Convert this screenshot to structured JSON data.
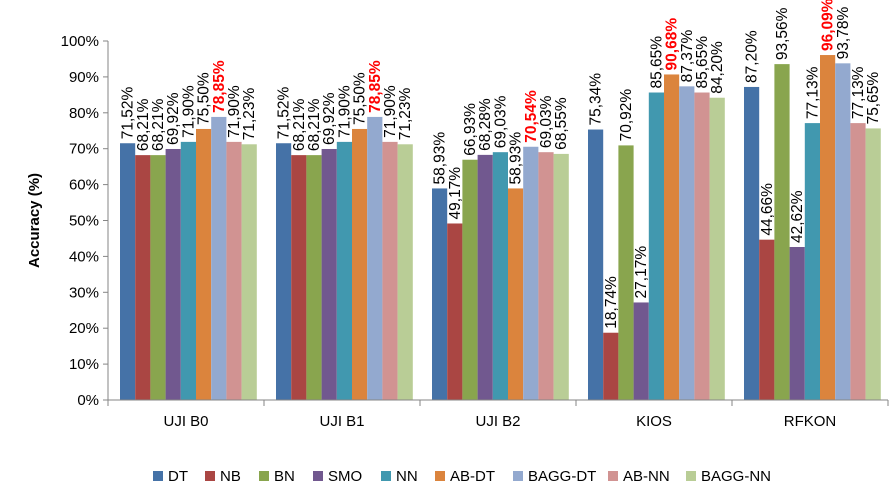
{
  "chart_data": {
    "type": "bar",
    "title": "",
    "xlabel": "",
    "ylabel": "Accuracy (%)",
    "ylim": [
      0,
      100
    ],
    "yticks": [
      "0%",
      "10%",
      "20%",
      "30%",
      "40%",
      "50%",
      "60%",
      "70%",
      "80%",
      "90%",
      "100%"
    ],
    "grid": false,
    "legend_position": "bottom",
    "categories": [
      "UJI B0",
      "UJI B1",
      "UJI B2",
      "KIOS",
      "RFKON"
    ],
    "series": [
      {
        "name": "DT",
        "color": "#4572a7",
        "values": [
          71.52,
          71.52,
          58.93,
          75.34,
          87.2
        ],
        "labels": [
          "71,52%",
          "71,52%",
          "58,93%",
          "75,34%",
          "87,20%"
        ]
      },
      {
        "name": "NB",
        "color": "#aa4643",
        "values": [
          68.21,
          68.21,
          49.17,
          18.74,
          44.66
        ],
        "labels": [
          "68,21%",
          "68,21%",
          "49,17%",
          "18,74%",
          "44,66%"
        ]
      },
      {
        "name": "BN",
        "color": "#89a54e",
        "values": [
          68.21,
          68.21,
          66.93,
          70.92,
          93.56
        ],
        "labels": [
          "68,21%",
          "68,21%",
          "66,93%",
          "70,92%",
          "93,56%"
        ]
      },
      {
        "name": "SMO",
        "color": "#71588f",
        "values": [
          69.92,
          69.92,
          68.28,
          27.17,
          42.62
        ],
        "labels": [
          "69,92%",
          "69,92%",
          "68,28%",
          "27,17%",
          "42,62%"
        ]
      },
      {
        "name": "NN",
        "color": "#4198af",
        "values": [
          71.9,
          71.9,
          69.03,
          85.65,
          77.13
        ],
        "labels": [
          "71,90%",
          "71,90%",
          "69,03%",
          "85,65%",
          "77,13%"
        ]
      },
      {
        "name": "AB-DT",
        "color": "#db843d",
        "values": [
          75.5,
          75.5,
          58.93,
          90.68,
          96.09
        ],
        "labels": [
          "75,50%",
          "75,50%",
          "58,93%",
          "90,68%",
          "96,09%"
        ]
      },
      {
        "name": "BAGG-DT",
        "color": "#93a9cf",
        "values": [
          78.85,
          78.85,
          70.54,
          87.37,
          93.78
        ],
        "labels": [
          "78,85%",
          "78,85%",
          "70,54%",
          "87,37%",
          "93,78%"
        ]
      },
      {
        "name": "AB-NN",
        "color": "#d19392",
        "values": [
          71.9,
          71.9,
          69.03,
          85.65,
          77.13
        ],
        "labels": [
          "71,90%",
          "71,90%",
          "69,03%",
          "85,65%",
          "77,13%"
        ]
      },
      {
        "name": "BAGG-NN",
        "color": "#b9cd96",
        "values": [
          71.23,
          71.23,
          68.55,
          84.2,
          75.65
        ],
        "labels": [
          "71,23%",
          "71,23%",
          "68,55%",
          "84,20%",
          "75,65%"
        ]
      }
    ],
    "highlighted_labels": [
      {
        "category_index": 0,
        "series_index": 6,
        "color": "#ff0000"
      },
      {
        "category_index": 1,
        "series_index": 6,
        "color": "#ff0000"
      },
      {
        "category_index": 2,
        "series_index": 6,
        "color": "#ff0000"
      },
      {
        "category_index": 3,
        "series_index": 5,
        "color": "#ff0000"
      },
      {
        "category_index": 4,
        "series_index": 5,
        "color": "#ff0000"
      }
    ]
  }
}
